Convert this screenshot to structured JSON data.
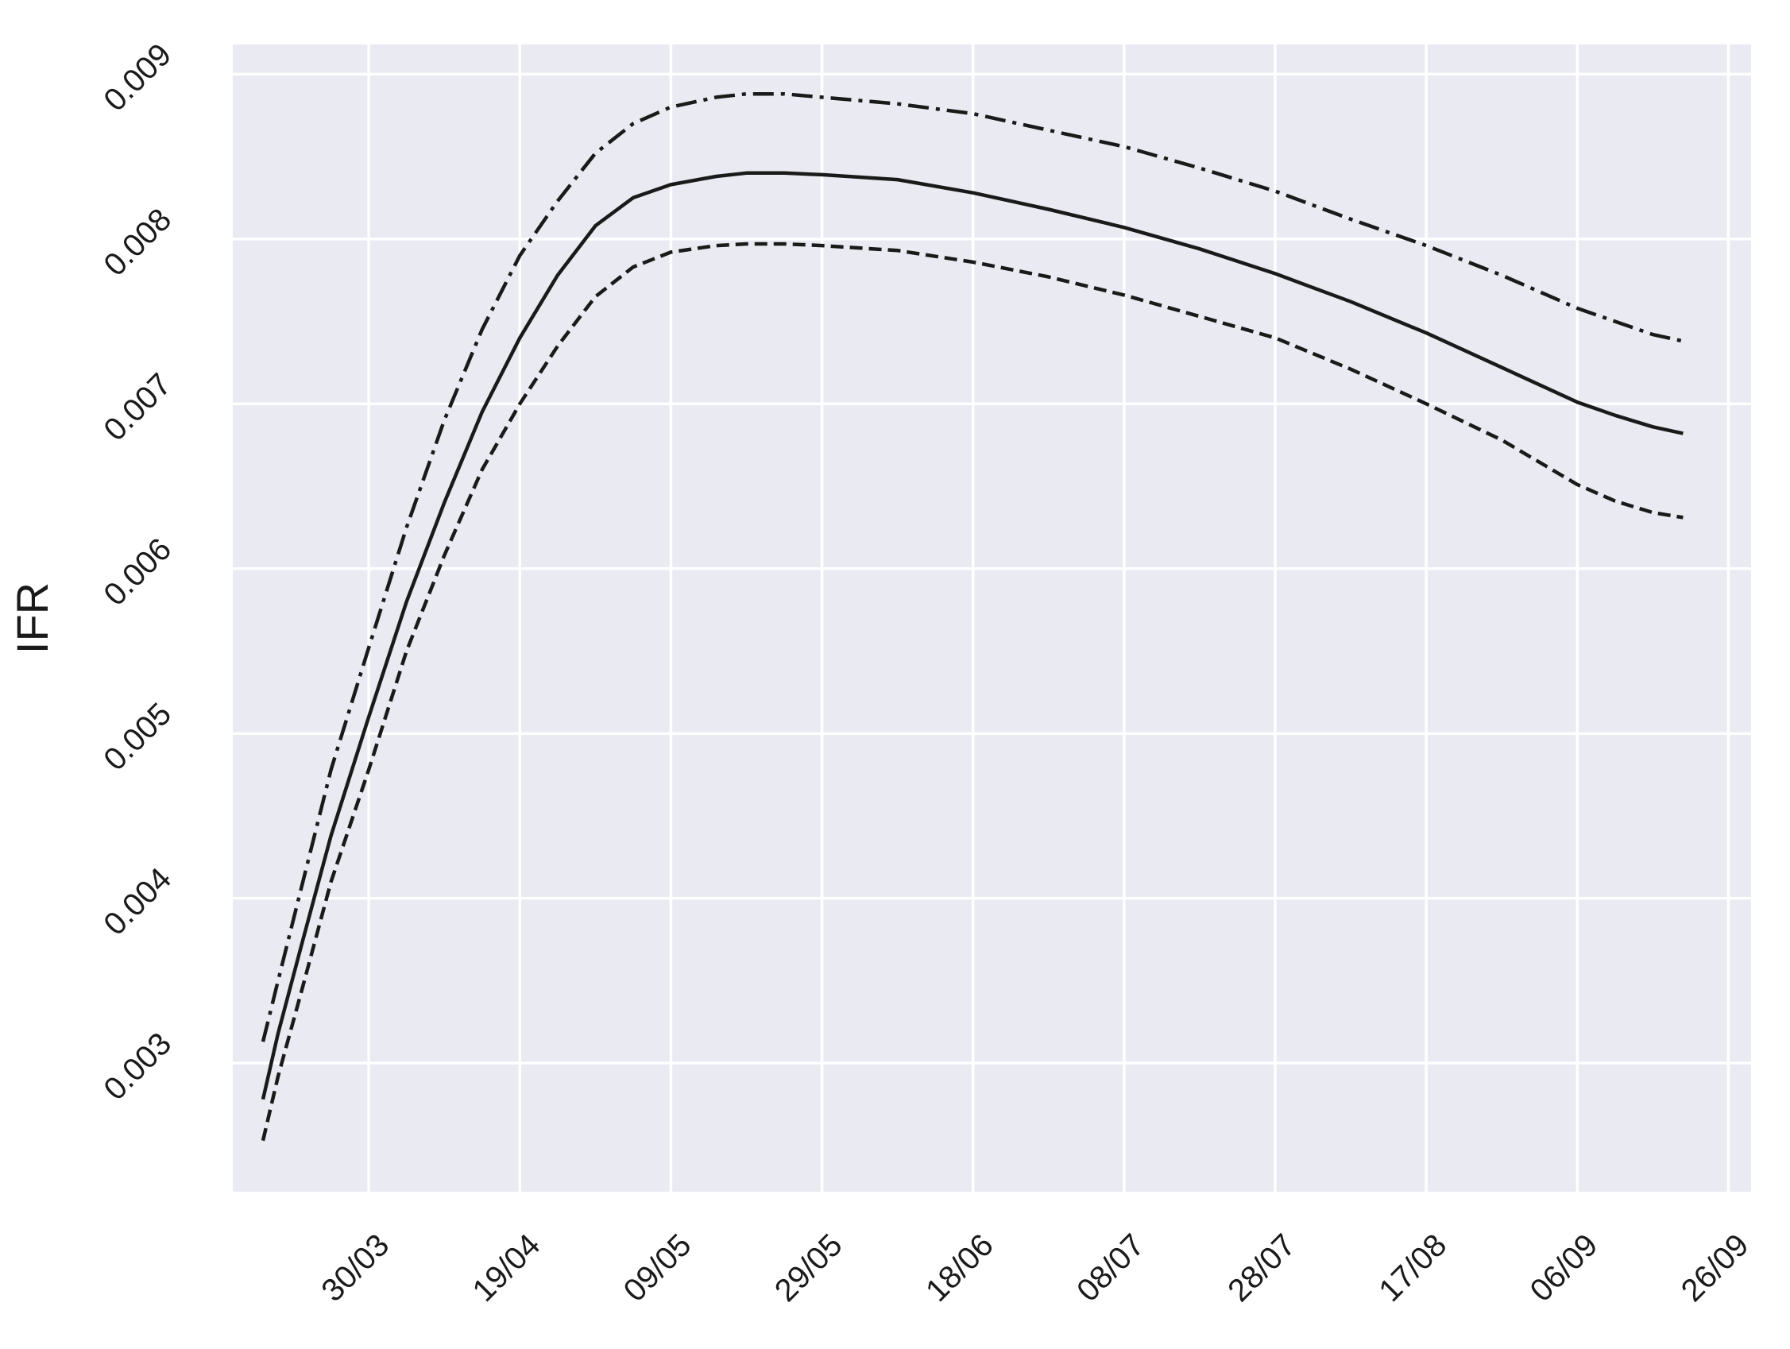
{
  "chart_data": {
    "type": "line",
    "ylabel": "IFR",
    "xlabel": "",
    "x_dates": [
      "2020-03-16",
      "2020-03-18",
      "2020-03-21",
      "2020-03-25",
      "2020-03-30",
      "2020-04-04",
      "2020-04-09",
      "2020-04-14",
      "2020-04-19",
      "2020-04-24",
      "2020-04-29",
      "2020-05-04",
      "2020-05-09",
      "2020-05-15",
      "2020-05-19",
      "2020-05-24",
      "2020-05-29",
      "2020-06-08",
      "2020-06-18",
      "2020-06-28",
      "2020-07-08",
      "2020-07-18",
      "2020-07-28",
      "2020-08-07",
      "2020-08-17",
      "2020-08-27",
      "2020-09-06",
      "2020-09-11",
      "2020-09-16",
      "2020-09-20"
    ],
    "series": [
      {
        "style": "solid",
        "values": [
          0.00278,
          0.00318,
          0.0037,
          0.00438,
          0.0051,
          0.0058,
          0.0064,
          0.00695,
          0.0074,
          0.00778,
          0.00808,
          0.00825,
          0.00833,
          0.00838,
          0.0084,
          0.0084,
          0.00839,
          0.00836,
          0.00828,
          0.00818,
          0.00807,
          0.00794,
          0.00779,
          0.00762,
          0.00743,
          0.00722,
          0.00701,
          0.00693,
          0.00686,
          0.00682
        ]
      },
      {
        "style": "dashdot",
        "values": [
          0.00313,
          0.0035,
          0.00405,
          0.00478,
          0.00552,
          0.00625,
          0.0069,
          0.00745,
          0.0079,
          0.00823,
          0.00852,
          0.0087,
          0.0088,
          0.00886,
          0.00888,
          0.00888,
          0.00886,
          0.00882,
          0.00876,
          0.00866,
          0.00856,
          0.00843,
          0.00829,
          0.00812,
          0.00796,
          0.00778,
          0.00758,
          0.0075,
          0.00742,
          0.00738
        ]
      },
      {
        "style": "dashed",
        "values": [
          0.00253,
          0.00292,
          0.00342,
          0.0041,
          0.00478,
          0.0055,
          0.00608,
          0.0066,
          0.007,
          0.00735,
          0.00765,
          0.00783,
          0.00792,
          0.00796,
          0.00797,
          0.00797,
          0.00796,
          0.00793,
          0.00786,
          0.00777,
          0.00766,
          0.00753,
          0.0074,
          0.00721,
          0.007,
          0.00678,
          0.00651,
          0.00641,
          0.00634,
          0.00631
        ]
      }
    ],
    "x_ticks": [
      "30/03",
      "19/04",
      "09/05",
      "29/05",
      "18/06",
      "08/07",
      "28/07",
      "17/08",
      "06/09",
      "26/09"
    ],
    "x_tick_dates": [
      "2020-03-30",
      "2020-04-19",
      "2020-05-09",
      "2020-05-29",
      "2020-06-18",
      "2020-07-08",
      "2020-07-28",
      "2020-08-17",
      "2020-09-06",
      "2020-09-26"
    ],
    "y_ticks": [
      0.003,
      0.004,
      0.005,
      0.006,
      0.007,
      0.008,
      0.009
    ],
    "y_tick_labels": [
      "0.003",
      "0.004",
      "0.005",
      "0.006",
      "0.007",
      "0.008",
      "0.009"
    ],
    "xlim": [
      "2020-03-12",
      "2020-09-29"
    ],
    "ylim": [
      0.00222,
      0.00918
    ],
    "grid": true,
    "legend": false,
    "colors": {
      "background": "#eaeaf2",
      "grid": "#ffffff",
      "line": "#1a1a1a",
      "text": "#1a1a1a"
    }
  }
}
